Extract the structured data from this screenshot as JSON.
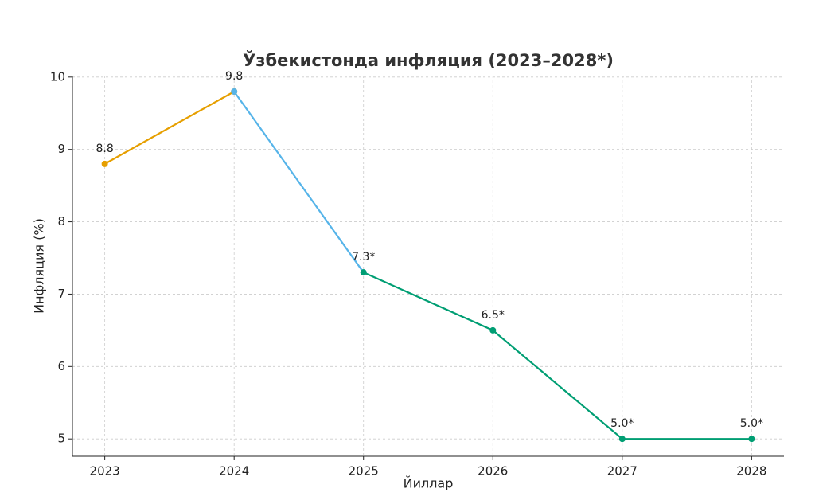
{
  "chart_data": {
    "type": "line",
    "title": "Ўзбекистонда инфляция (2023–2028*)",
    "x_label": "Йиллар",
    "y_label": "Инфляция (%)",
    "x": [
      2023,
      2024,
      2025,
      2026,
      2027,
      2028
    ],
    "series": [
      {
        "color": "#e69f00",
        "values": [
          8.8,
          9.8,
          null,
          null,
          null,
          null
        ],
        "value_labels": [
          "8.8",
          null,
          null,
          null,
          null,
          null
        ]
      },
      {
        "color": "#56b4e9",
        "values": [
          null,
          9.8,
          7.3,
          null,
          null,
          null
        ],
        "value_labels": [
          null,
          "9.8",
          null,
          null,
          null,
          null
        ]
      },
      {
        "color": "#009e73",
        "values": [
          null,
          null,
          7.3,
          6.5,
          5.0,
          5.0
        ],
        "value_labels": [
          null,
          null,
          "7.3*",
          "6.5*",
          "5.0*",
          "5.0*"
        ]
      }
    ],
    "xlim": [
      2022.75,
      2028.25
    ],
    "xticks": [
      2023,
      2024,
      2025,
      2026,
      2027,
      2028
    ],
    "ylim": [
      4.76,
      10.02
    ],
    "yticks": [
      5,
      6,
      7,
      8,
      9,
      10
    ],
    "grid": true
  }
}
